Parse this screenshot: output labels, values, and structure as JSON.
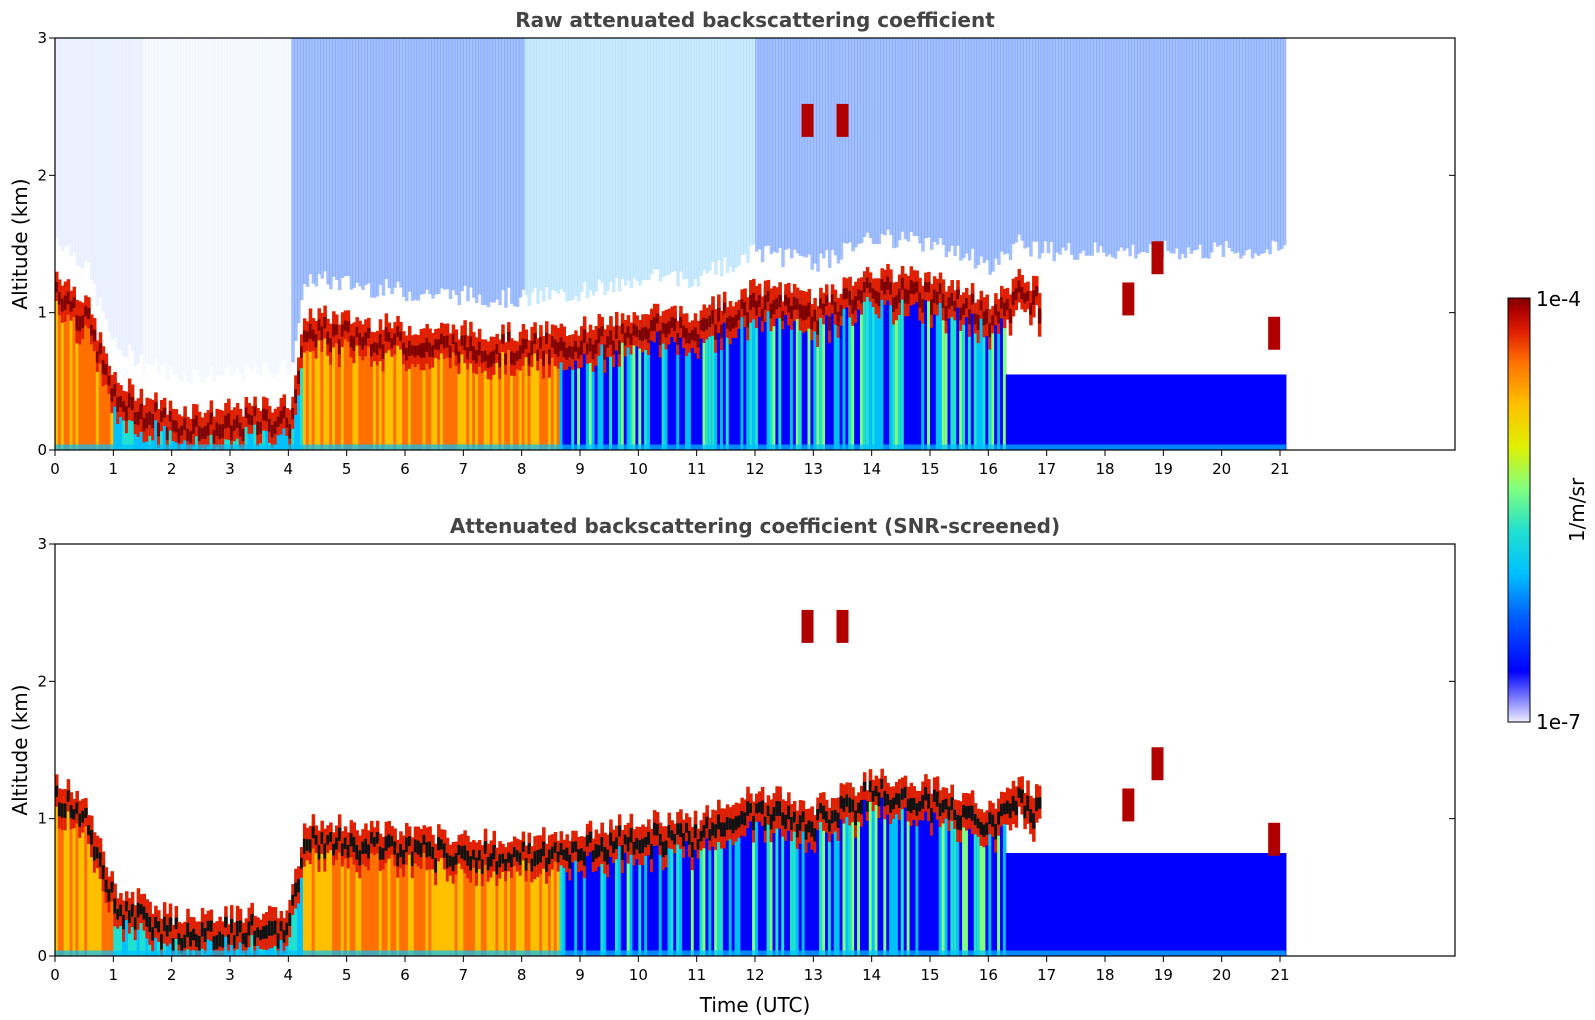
{
  "chart_data": [
    {
      "type": "heatmap",
      "title": "Raw attenuated backscattering coefficient",
      "xlabel": "",
      "ylabel": "Altitude (km)",
      "xlim": [
        0,
        24
      ],
      "ylim": [
        0,
        3
      ],
      "xticks": [
        0,
        1,
        2,
        3,
        4,
        5,
        6,
        7,
        8,
        9,
        10,
        11,
        12,
        13,
        14,
        15,
        16,
        17,
        18,
        19,
        20,
        21
      ],
      "yticks": [
        0,
        1,
        2,
        3
      ],
      "data_end_time": 21.1,
      "layer_top_km": [
        [
          0,
          1.3
        ],
        [
          0.5,
          1.1
        ],
        [
          1,
          0.5
        ],
        [
          2,
          0.3
        ],
        [
          3,
          0.3
        ],
        [
          4,
          0.35
        ],
        [
          4.3,
          1.0
        ],
        [
          6,
          0.9
        ],
        [
          8,
          0.85
        ],
        [
          9,
          0.9
        ],
        [
          10,
          1.0
        ],
        [
          11,
          1.0
        ],
        [
          12,
          1.2
        ],
        [
          13,
          1.1
        ],
        [
          14,
          1.3
        ],
        [
          15,
          1.25
        ],
        [
          16,
          1.1
        ],
        [
          16.5,
          1.25
        ],
        [
          17,
          1.2
        ]
      ],
      "high_clouds": [
        [
          12.9,
          2.4
        ],
        [
          13.5,
          2.4
        ],
        [
          18.4,
          1.1
        ],
        [
          18.9,
          1.4
        ],
        [
          20.9,
          0.85
        ]
      ]
    },
    {
      "type": "heatmap",
      "title": "Attenuated backscattering coefficient (SNR-screened)",
      "xlabel": "Time (UTC)",
      "ylabel": "Altitude (km)",
      "xlim": [
        0,
        24
      ],
      "ylim": [
        0,
        3
      ],
      "xticks": [
        0,
        1,
        2,
        3,
        4,
        5,
        6,
        7,
        8,
        9,
        10,
        11,
        12,
        13,
        14,
        15,
        16,
        17,
        18,
        19,
        20,
        21
      ],
      "yticks": [
        0,
        1,
        2,
        3
      ],
      "data_end_time": 21.1
    }
  ],
  "colorbar": {
    "label": "1/m/sr",
    "max_label": "1e-4",
    "min_label": "1e-7",
    "colors": [
      "#eeeeff",
      "#8888ff",
      "#0000ff",
      "#0060ff",
      "#00c0ff",
      "#20e0d0",
      "#80ff80",
      "#e0f000",
      "#ffc000",
      "#ff7000",
      "#e02000",
      "#b00000",
      "#800000"
    ]
  }
}
